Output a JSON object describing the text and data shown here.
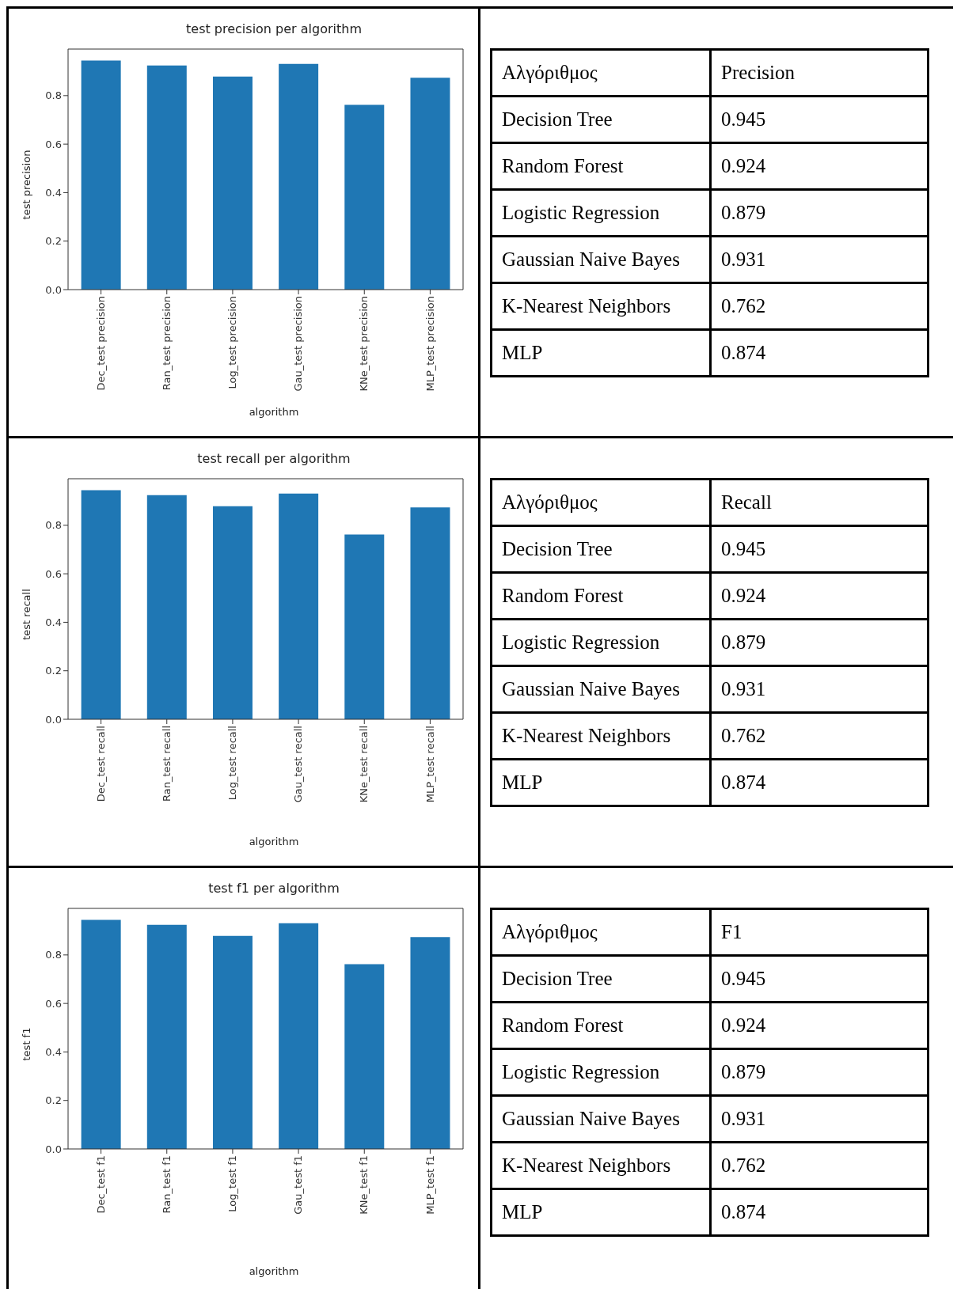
{
  "chart_data": [
    {
      "type": "bar",
      "title": "test precision per algorithm",
      "xlabel": "algorithm",
      "ylabel": "test precision",
      "categories": [
        "Dec_test precision",
        "Ran_test precision",
        "Log_test precision",
        "Gau_test precision",
        "KNe_test precision",
        "MLP_test precision"
      ],
      "values": [
        0.945,
        0.924,
        0.879,
        0.931,
        0.762,
        0.874
      ],
      "color": "#1f77b4",
      "ylim": [
        0,
        0.992
      ],
      "yticks": [
        {
          "value": 0,
          "label": "0.0"
        },
        {
          "value": 0.2,
          "label": "0.2"
        },
        {
          "value": 0.4,
          "label": "0.4"
        },
        {
          "value": 0.6,
          "label": "0.6"
        },
        {
          "value": 0.8,
          "label": "0.8"
        }
      ],
      "grid": false
    },
    {
      "type": "other",
      "annotations": [
        "Αλγόριθμος",
        "Precision",
        "Decision Tree",
        "0.945",
        "Random Forest",
        "0.924",
        "Logistic Regression",
        "0.879",
        "Gaussian Naive Bayes",
        "0.931",
        "K-Nearest Neighbors",
        "0.762",
        "MLP",
        "0.874"
      ]
    },
    {
      "type": "bar",
      "title": "test recall per algorithm",
      "xlabel": "algorithm",
      "ylabel": "test recall",
      "categories": [
        "Dec_test recall",
        "Ran_test recall",
        "Log_test recall",
        "Gau_test recall",
        "KNe_test recall",
        "MLP_test recall"
      ],
      "values": [
        0.945,
        0.924,
        0.879,
        0.931,
        0.762,
        0.874
      ],
      "color": "#1f77b4",
      "ylim": [
        0,
        0.992
      ],
      "yticks": [
        {
          "value": 0,
          "label": "0.0"
        },
        {
          "value": 0.2,
          "label": "0.2"
        },
        {
          "value": 0.4,
          "label": "0.4"
        },
        {
          "value": 0.6,
          "label": "0.6"
        },
        {
          "value": 0.8,
          "label": "0.8"
        }
      ],
      "grid": false
    },
    {
      "type": "other",
      "annotations": [
        "Αλγόριθμος",
        "Recall",
        "Decision Tree",
        "0.945",
        "Random Forest",
        "0.924",
        "Logistic Regression",
        "0.879",
        "Gaussian Naive Bayes",
        "0.931",
        "K-Nearest Neighbors",
        "0.762",
        "MLP",
        "0.874"
      ]
    },
    {
      "type": "bar",
      "title": "test f1 per algorithm",
      "xlabel": "algorithm",
      "ylabel": "test f1",
      "categories": [
        "Dec_test f1",
        "Ran_test f1",
        "Log_test f1",
        "Gau_test f1",
        "KNe_test f1",
        "MLP_test f1"
      ],
      "values": [
        0.945,
        0.924,
        0.879,
        0.931,
        0.762,
        0.874
      ],
      "color": "#1f77b4",
      "ylim": [
        0,
        0.992
      ],
      "yticks": [
        {
          "value": 0,
          "label": "0.0"
        },
        {
          "value": 0.2,
          "label": "0.2"
        },
        {
          "value": 0.4,
          "label": "0.4"
        },
        {
          "value": 0.6,
          "label": "0.6"
        },
        {
          "value": 0.8,
          "label": "0.8"
        }
      ],
      "grid": false
    },
    {
      "type": "other",
      "annotations": [
        "Αλγόριθμος",
        "F1",
        "Decision Tree",
        "0.945",
        "Random Forest",
        "0.924",
        "Logistic Regression",
        "0.879",
        "Gaussian Naive Bayes",
        "0.931",
        "K-Nearest Neighbors",
        "0.762",
        "MLP",
        "0.874"
      ]
    }
  ]
}
